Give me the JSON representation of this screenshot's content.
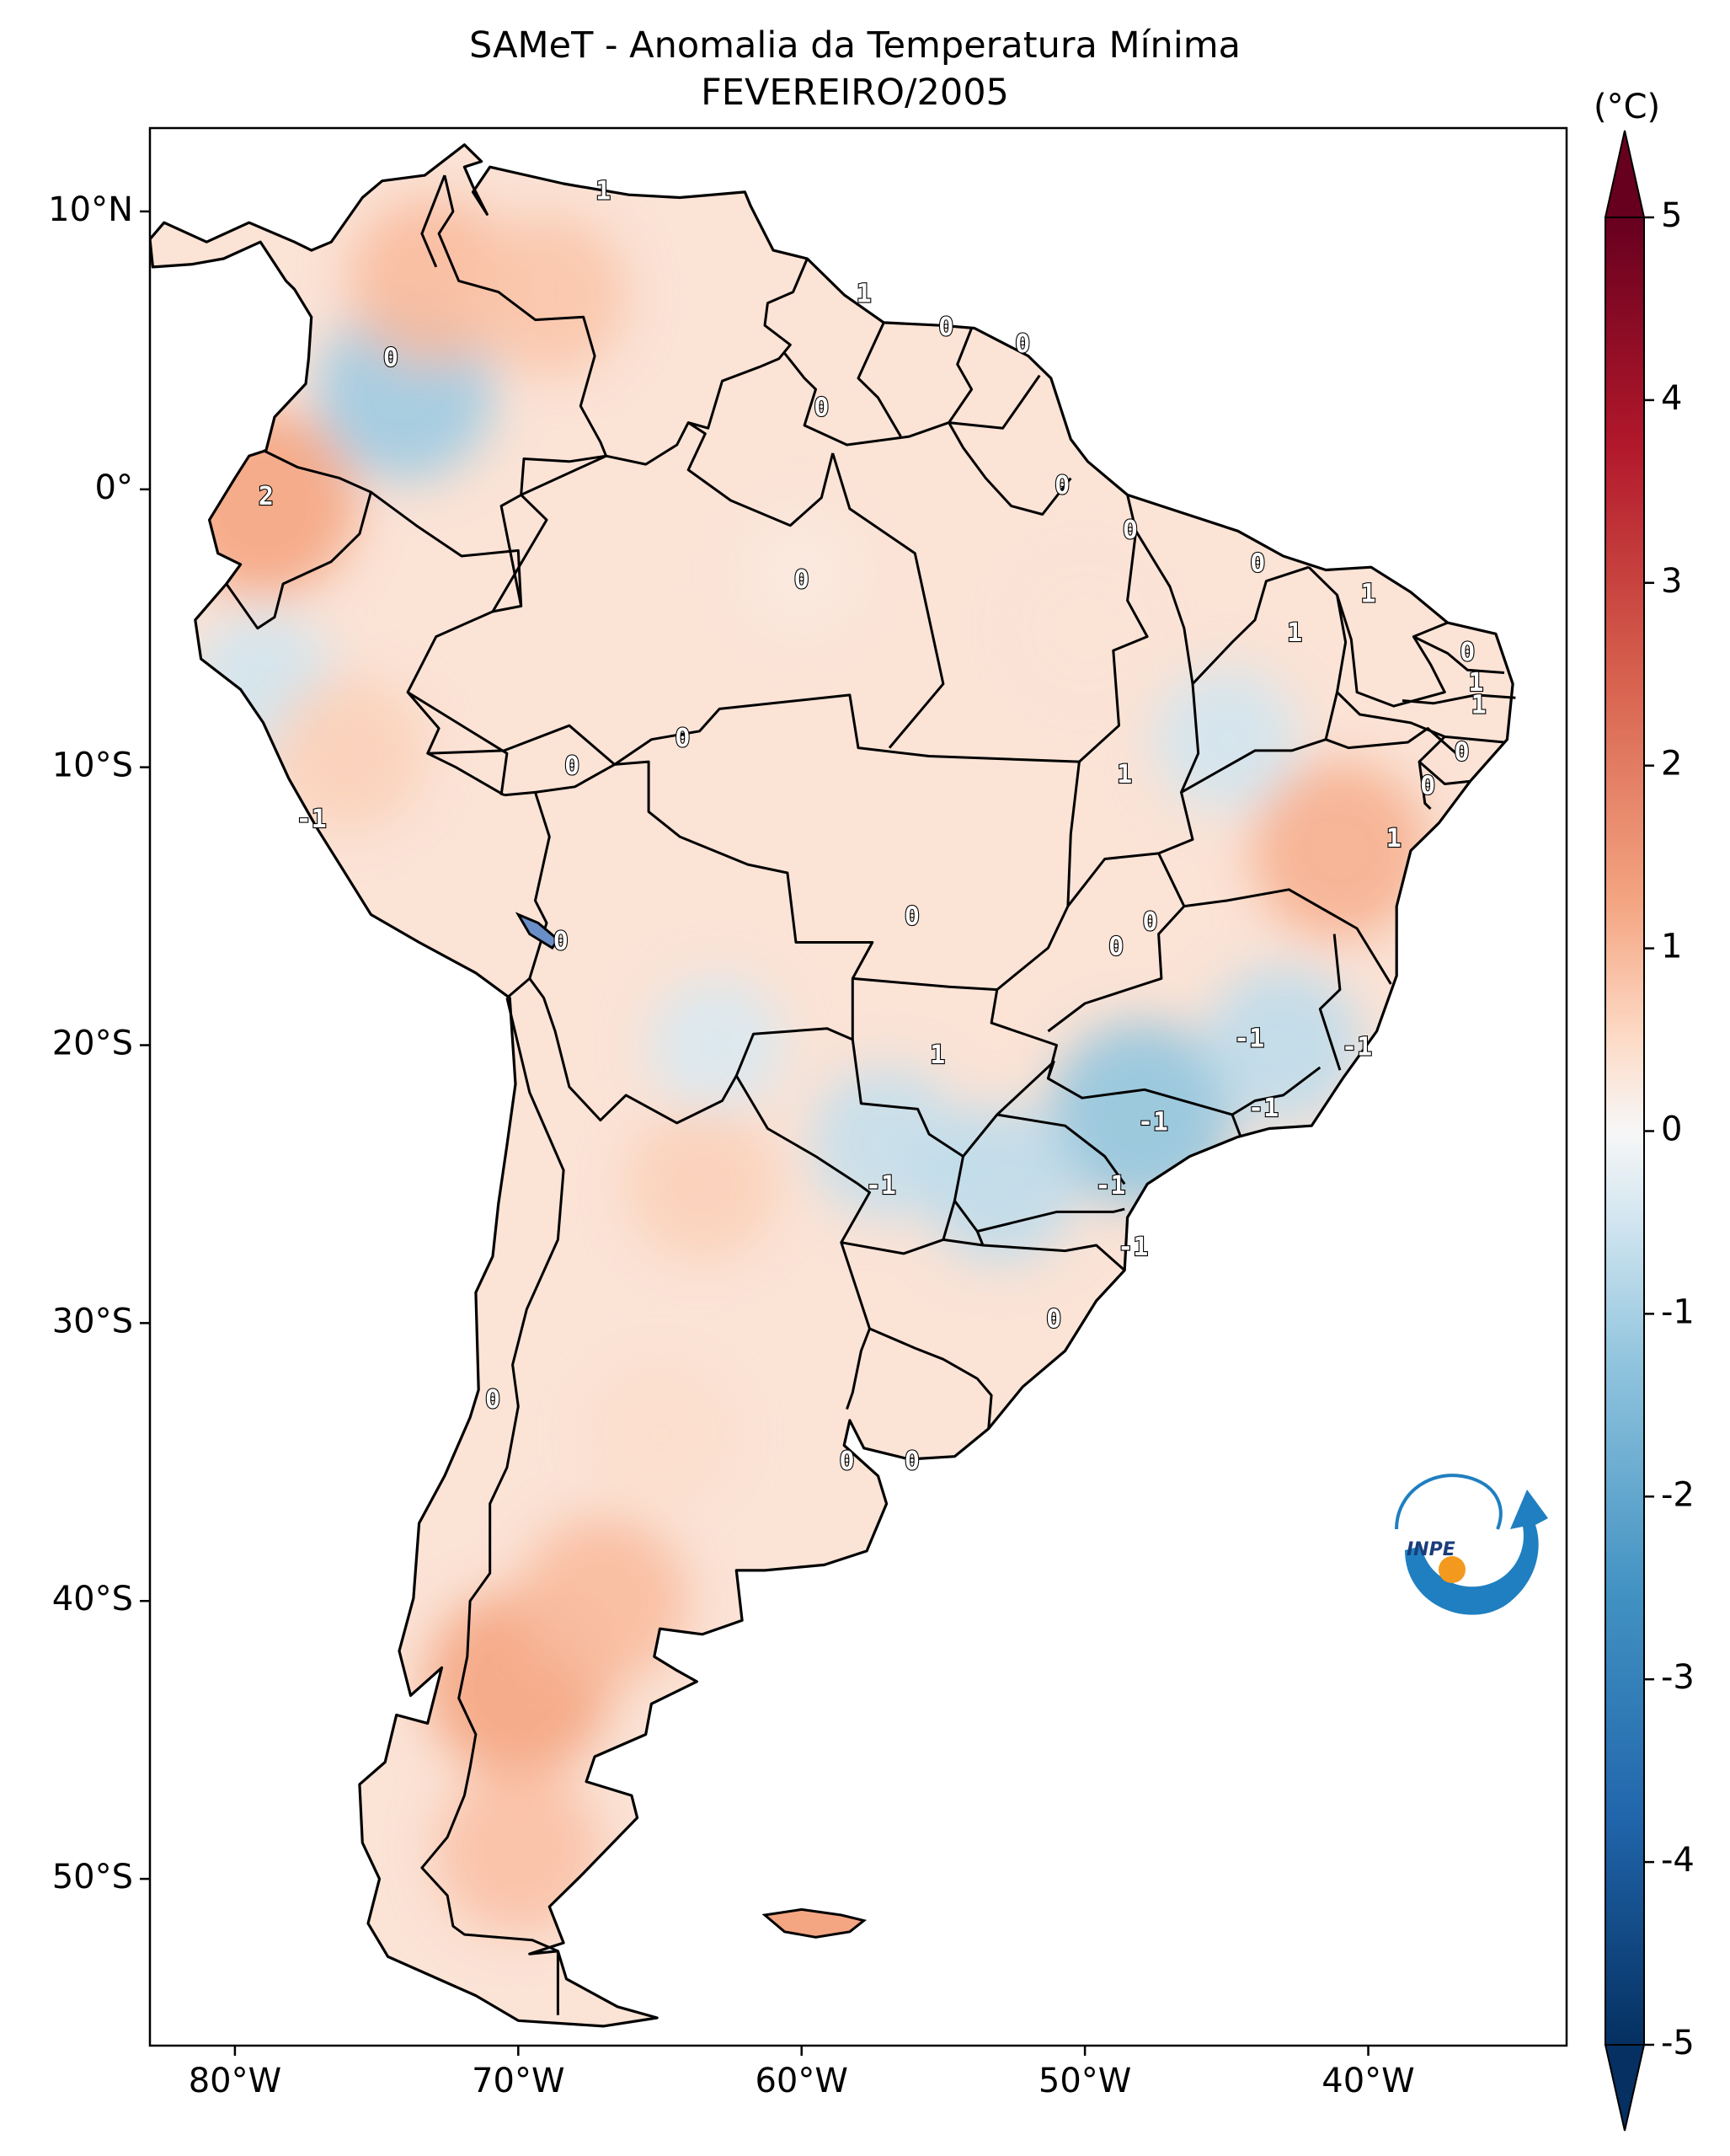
{
  "title": {
    "line1": "SAMeT - Anomalia da Temperatura Mínima",
    "line2": "FEVEREIRO/2005"
  },
  "axes": {
    "lat_ticks": [
      {
        "value": 10,
        "label": "10°N"
      },
      {
        "value": 0,
        "label": "0°"
      },
      {
        "value": -10,
        "label": "10°S"
      },
      {
        "value": -20,
        "label": "20°S"
      },
      {
        "value": -30,
        "label": "30°S"
      },
      {
        "value": -40,
        "label": "40°S"
      },
      {
        "value": -50,
        "label": "50°S"
      }
    ],
    "lon_ticks": [
      {
        "value": -80,
        "label": "80°W"
      },
      {
        "value": -70,
        "label": "70°W"
      },
      {
        "value": -60,
        "label": "60°W"
      },
      {
        "value": -50,
        "label": "50°W"
      },
      {
        "value": -40,
        "label": "40°W"
      }
    ]
  },
  "colorbar": {
    "unit": "(°C)",
    "min": -5,
    "max": 5,
    "ticks": [
      {
        "value": 5,
        "label": "5"
      },
      {
        "value": 4,
        "label": "4"
      },
      {
        "value": 3,
        "label": "3"
      },
      {
        "value": 2,
        "label": "2"
      },
      {
        "value": 1,
        "label": "1"
      },
      {
        "value": 0,
        "label": "0"
      },
      {
        "value": -1,
        "label": "-1"
      },
      {
        "value": -2,
        "label": "-2"
      },
      {
        "value": -3,
        "label": "-3"
      },
      {
        "value": -4,
        "label": "-4"
      },
      {
        "value": -5,
        "label": "-5"
      }
    ],
    "colors": {
      "max": "#67001f",
      "high": "#d6604d",
      "mid_high": "#f4a582",
      "low_pos": "#fddbc7",
      "zero": "#f7f7f7",
      "low_neg": "#d1e5f0",
      "mid_low": "#92c5de",
      "low": "#4393c3",
      "min": "#053061"
    }
  },
  "chart_data": {
    "type": "heatmap",
    "title": "SAMeT - Anomalia da Temperatura Mínima FEVEREIRO/2005",
    "variable": "Minimum temperature anomaly",
    "units": "°C",
    "value_range": [
      -5,
      5
    ],
    "lon_range": [
      -83,
      -33
    ],
    "lat_range": [
      -56,
      13
    ],
    "contour_labels": [
      {
        "lon": -67,
        "lat": 10.7,
        "value": "1"
      },
      {
        "lon": -57.8,
        "lat": 7.0,
        "value": "1"
      },
      {
        "lon": -54.9,
        "lat": 5.8,
        "value": "0"
      },
      {
        "lon": -52.2,
        "lat": 5.2,
        "value": "0"
      },
      {
        "lon": -59.3,
        "lat": 2.9,
        "value": "0"
      },
      {
        "lon": -74.5,
        "lat": 4.7,
        "value": "0"
      },
      {
        "lon": -50.8,
        "lat": 0.1,
        "value": "0"
      },
      {
        "lon": -48.4,
        "lat": -1.5,
        "value": "0"
      },
      {
        "lon": -43.9,
        "lat": -2.7,
        "value": "0"
      },
      {
        "lon": -60,
        "lat": -3.3,
        "value": "0"
      },
      {
        "lon": -78.9,
        "lat": -0.3,
        "value": "2"
      },
      {
        "lon": -40,
        "lat": -3.8,
        "value": "1"
      },
      {
        "lon": -42.6,
        "lat": -5.2,
        "value": "1"
      },
      {
        "lon": -36.5,
        "lat": -5.9,
        "value": "0"
      },
      {
        "lon": -36.2,
        "lat": -7.0,
        "value": "1"
      },
      {
        "lon": -36.1,
        "lat": -7.8,
        "value": "1"
      },
      {
        "lon": -36.7,
        "lat": -9.5,
        "value": "0"
      },
      {
        "lon": -37.9,
        "lat": -10.7,
        "value": "0"
      },
      {
        "lon": -39.1,
        "lat": -12.6,
        "value": "1"
      },
      {
        "lon": -48.6,
        "lat": -10.3,
        "value": "1"
      },
      {
        "lon": -64.2,
        "lat": -9.0,
        "value": "0"
      },
      {
        "lon": -68.1,
        "lat": -10.0,
        "value": "0"
      },
      {
        "lon": -77.3,
        "lat": -11.9,
        "value": "-1"
      },
      {
        "lon": -68.5,
        "lat": -16.3,
        "value": "0"
      },
      {
        "lon": -56.1,
        "lat": -15.4,
        "value": "0"
      },
      {
        "lon": -47.7,
        "lat": -15.6,
        "value": "0"
      },
      {
        "lon": -48.9,
        "lat": -16.5,
        "value": "0"
      },
      {
        "lon": -55.2,
        "lat": -20.4,
        "value": "1"
      },
      {
        "lon": -44.2,
        "lat": -19.8,
        "value": "-1"
      },
      {
        "lon": -40.4,
        "lat": -20.1,
        "value": "-1"
      },
      {
        "lon": -47.6,
        "lat": -22.8,
        "value": "-1"
      },
      {
        "lon": -43.7,
        "lat": -22.3,
        "value": "-1"
      },
      {
        "lon": -57.2,
        "lat": -25.1,
        "value": "-1"
      },
      {
        "lon": -49.1,
        "lat": -25.1,
        "value": "-1"
      },
      {
        "lon": -48.3,
        "lat": -27.3,
        "value": "-1"
      },
      {
        "lon": -51.1,
        "lat": -29.9,
        "value": "0"
      },
      {
        "lon": -70.9,
        "lat": -32.8,
        "value": "0"
      },
      {
        "lon": -58.4,
        "lat": -35.0,
        "value": "0"
      },
      {
        "lon": -56.1,
        "lat": -35.0,
        "value": "0"
      }
    ],
    "anomaly_centers": [
      {
        "lon": -74,
        "lat": 3.5,
        "value": -1.8
      },
      {
        "lon": -79,
        "lat": -0.5,
        "value": 2.0
      },
      {
        "lon": -73,
        "lat": 7.5,
        "value": 1.6
      },
      {
        "lon": -69,
        "lat": 7,
        "value": 1.4
      },
      {
        "lon": -79,
        "lat": -7,
        "value": -1.0
      },
      {
        "lon": -76,
        "lat": -9.5,
        "value": 1.2
      },
      {
        "lon": -63,
        "lat": -20,
        "value": -0.8
      },
      {
        "lon": -57,
        "lat": -23.5,
        "value": -1.2
      },
      {
        "lon": -48,
        "lat": -22.5,
        "value": -2.0
      },
      {
        "lon": -43,
        "lat": -20,
        "value": -1.3
      },
      {
        "lon": -45,
        "lat": -9,
        "value": -1.0
      },
      {
        "lon": -41,
        "lat": -13,
        "value": 1.8
      },
      {
        "lon": -53,
        "lat": -25,
        "value": -1.3
      },
      {
        "lon": -63.5,
        "lat": -25,
        "value": 1.2
      },
      {
        "lon": -70,
        "lat": -43,
        "value": 2.0
      },
      {
        "lon": -67,
        "lat": -40,
        "value": 1.6
      },
      {
        "lon": -70,
        "lat": -49,
        "value": 1.5
      },
      {
        "lon": -50,
        "lat": -5,
        "value": 0.7
      },
      {
        "lon": -60,
        "lat": -3,
        "value": 0.5
      },
      {
        "lon": -65,
        "lat": -34,
        "value": 0.9
      }
    ]
  },
  "logo": {
    "text": "INPE"
  }
}
